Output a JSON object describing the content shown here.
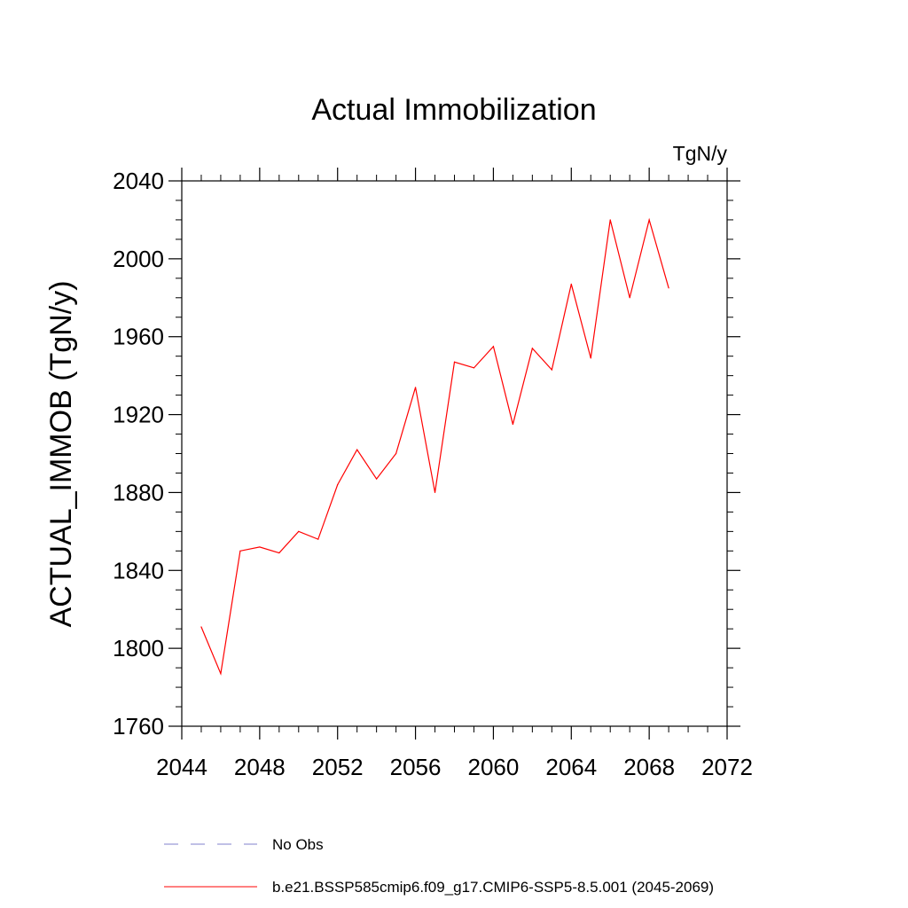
{
  "chart_data": {
    "type": "line",
    "title": "Actual Immobilization",
    "units_label": "TgN/y",
    "ylabel": "ACTUAL_IMMOB  (TgN/y)",
    "xlabel": "",
    "xlim": [
      2044,
      2072
    ],
    "ylim": [
      1760,
      2040
    ],
    "x_ticks": [
      2044,
      2048,
      2052,
      2056,
      2060,
      2064,
      2068,
      2072
    ],
    "y_ticks": [
      1760,
      1800,
      1840,
      1880,
      1920,
      1960,
      2000,
      2040
    ],
    "grid": false,
    "legend_position": "bottom",
    "series": [
      {
        "name": "b.e21.BSSP585cmip6.f09_g17.CMIP6-SSP5-8.5.001 (2045-2069)",
        "color": "#ff0000",
        "style": "solid",
        "x": [
          2045,
          2046,
          2047,
          2048,
          2049,
          2050,
          2051,
          2052,
          2053,
          2054,
          2055,
          2056,
          2057,
          2058,
          2059,
          2060,
          2061,
          2062,
          2063,
          2064,
          2065,
          2066,
          2067,
          2068,
          2069
        ],
        "values": [
          1811,
          1787,
          1850,
          1852,
          1849,
          1860,
          1856,
          1884,
          1902,
          1887,
          1900,
          1934,
          1880,
          1947,
          1944,
          1955,
          1915,
          1954,
          1943,
          1987,
          1949,
          2020,
          1980,
          2020,
          1985
        ]
      }
    ],
    "legend": [
      {
        "label": "No Obs",
        "color": "#8080cc",
        "style": "dashed"
      },
      {
        "label": "b.e21.BSSP585cmip6.f09_g17.CMIP6-SSP5-8.5.001 (2045-2069)",
        "color": "#ff0000",
        "style": "solid"
      }
    ]
  }
}
